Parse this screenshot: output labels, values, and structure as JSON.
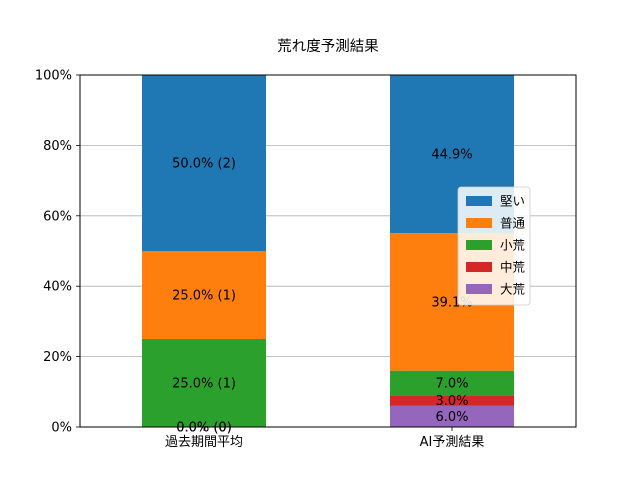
{
  "chart_data": {
    "type": "bar",
    "stacked": true,
    "title": "荒れ度予測結果",
    "xlabel": "",
    "ylabel": "",
    "categories": [
      "過去期間平均",
      "AI予測結果"
    ],
    "ylim": [
      0,
      100
    ],
    "yticks": [
      "0%",
      "20%",
      "40%",
      "60%",
      "80%",
      "100%"
    ],
    "grid": "horizontal",
    "legend_position": "center-right",
    "series": [
      {
        "name": "大荒",
        "color": "#9467bd",
        "values": [
          0.0,
          6.0
        ],
        "labels": [
          "0.0% (0)",
          "6.0%"
        ]
      },
      {
        "name": "中荒",
        "color": "#d62728",
        "values": [
          0.0,
          3.0
        ],
        "labels": [
          "0.0% (0)",
          "3.0%"
        ]
      },
      {
        "name": "小荒",
        "color": "#2ca02c",
        "values": [
          25.0,
          7.0
        ],
        "labels": [
          "25.0% (1)",
          "7.0%"
        ]
      },
      {
        "name": "普通",
        "color": "#ff7f0e",
        "values": [
          25.0,
          39.1
        ],
        "labels": [
          "25.0% (1)",
          "39.1%"
        ]
      },
      {
        "name": "堅い",
        "color": "#1f77b4",
        "values": [
          50.0,
          44.9
        ],
        "labels": [
          "50.0% (2)",
          "44.9%"
        ]
      }
    ],
    "legend_order": [
      "堅い",
      "普通",
      "小荒",
      "中荒",
      "大荒"
    ]
  }
}
